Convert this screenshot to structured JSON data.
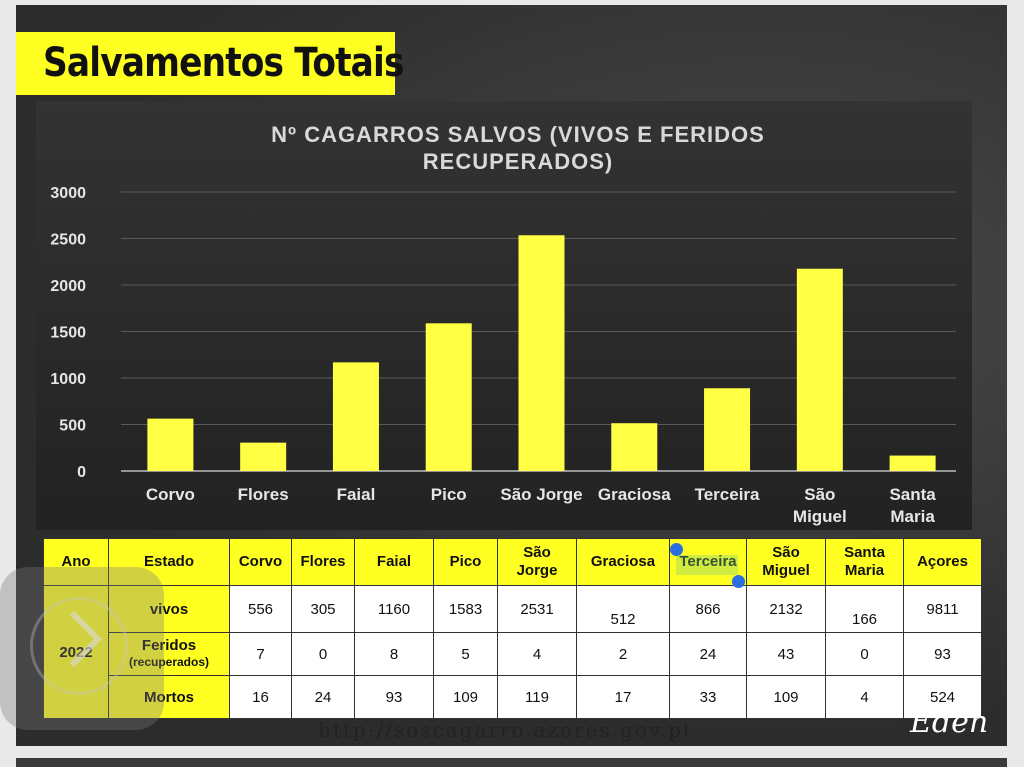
{
  "heading": "Salvamentos Totais",
  "chart_data": {
    "type": "bar",
    "title": "Nº CAGARROS SALVOS (VIVOS E FERIDOS RECUPERADOS)",
    "title_lines": [
      "Nº CAGARROS SALVOS (VIVOS E FERIDOS",
      "RECUPERADOS)"
    ],
    "categories": [
      "Corvo",
      "Flores",
      "Faial",
      "Pico",
      "São Jorge",
      "Graciosa",
      "Terceira",
      "São Miguel",
      "Santa Maria"
    ],
    "category_lines": [
      [
        "Corvo"
      ],
      [
        "Flores"
      ],
      [
        "Faial"
      ],
      [
        "Pico"
      ],
      [
        "São Jorge"
      ],
      [
        "Graciosa"
      ],
      [
        "Terceira"
      ],
      [
        "São",
        "Miguel"
      ],
      [
        "Santa",
        "Maria"
      ]
    ],
    "values": [
      563,
      305,
      1168,
      1588,
      2535,
      514,
      890,
      2175,
      166
    ],
    "ylim": [
      0,
      3000
    ],
    "yticks": [
      0,
      500,
      1000,
      1500,
      2000,
      2500,
      3000
    ],
    "xlabel": "",
    "ylabel": "",
    "grid": true,
    "bar_color": "#ffff44"
  },
  "table": {
    "headers": [
      "Ano",
      "Estado",
      "Corvo",
      "Flores",
      "Faial",
      "Pico",
      "São Jorge",
      "Graciosa",
      "Terceira",
      "São Miguel",
      "Santa Maria",
      "Açores"
    ],
    "year": "2022",
    "rows": [
      {
        "estado": "vivos",
        "estado_sub": "",
        "values": [
          "556",
          "305",
          "1160",
          "1583",
          "2531",
          "512",
          "866",
          "2132",
          "166",
          "9811"
        ]
      },
      {
        "estado": "Feridos",
        "estado_sub": "(recuperados)",
        "values": [
          "7",
          "0",
          "8",
          "5",
          "4",
          "2",
          "24",
          "43",
          "0",
          "93"
        ]
      },
      {
        "estado": "Mortos",
        "estado_sub": "",
        "values": [
          "16",
          "24",
          "93",
          "109",
          "119",
          "17",
          "33",
          "109",
          "4",
          "524"
        ]
      }
    ]
  },
  "url": "http://soscagarro.azores.gov.pt",
  "watermark": "Eden",
  "colors": {
    "accent": "#ffff22",
    "background": "#2f2f2f",
    "selection": "#2a6fe0"
  }
}
